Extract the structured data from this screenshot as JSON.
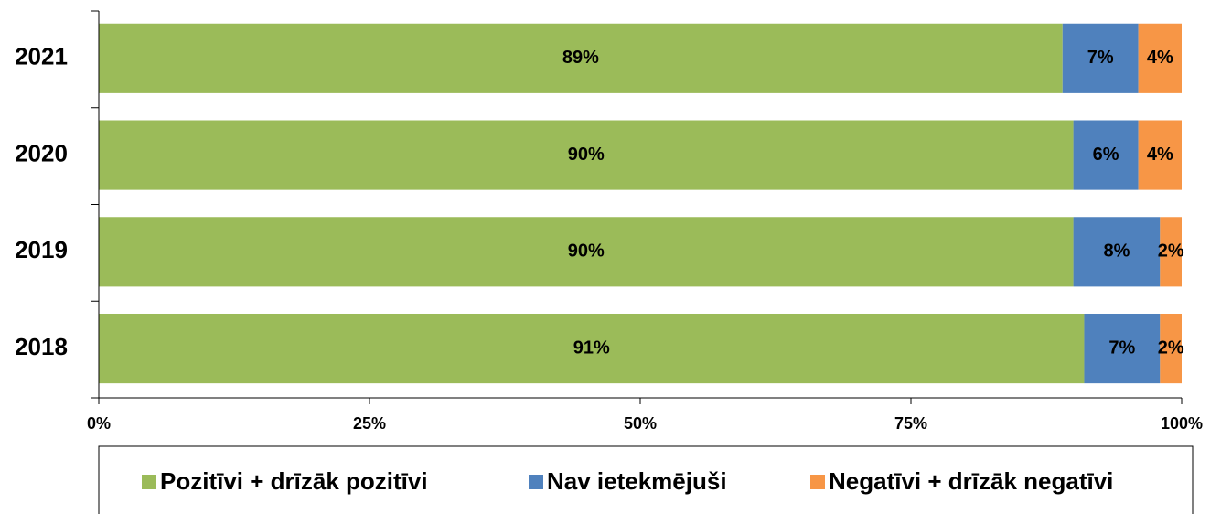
{
  "chart_data": {
    "type": "stacked_barh",
    "categories": [
      "2021",
      "2020",
      "2019",
      "2018"
    ],
    "series": [
      {
        "name": "Pozitīvi + drīzāk pozitīvi",
        "color": "#9bbb59",
        "values": [
          89,
          90,
          90,
          91
        ],
        "value_labels": [
          "89%",
          "90%",
          "90%",
          "91%"
        ]
      },
      {
        "name": "Nav ietekmējuši",
        "color": "#4f81bd",
        "values": [
          7,
          6,
          8,
          7
        ],
        "value_labels": [
          "7%",
          "6%",
          "8%",
          "7%"
        ]
      },
      {
        "name": "Negatīvi + drīzāk negatīvi",
        "color": "#f79646",
        "values": [
          4,
          4,
          2,
          2
        ],
        "value_labels": [
          "4%",
          "4%",
          "2%",
          "2%"
        ]
      }
    ],
    "xlim": [
      0,
      100
    ],
    "xticks": [
      {
        "value": 0,
        "label": "0%"
      },
      {
        "value": 25,
        "label": "25%"
      },
      {
        "value": 50,
        "label": "50%"
      },
      {
        "value": 75,
        "label": "75%"
      },
      {
        "value": 100,
        "label": "100%"
      }
    ],
    "legend": "bottom"
  }
}
